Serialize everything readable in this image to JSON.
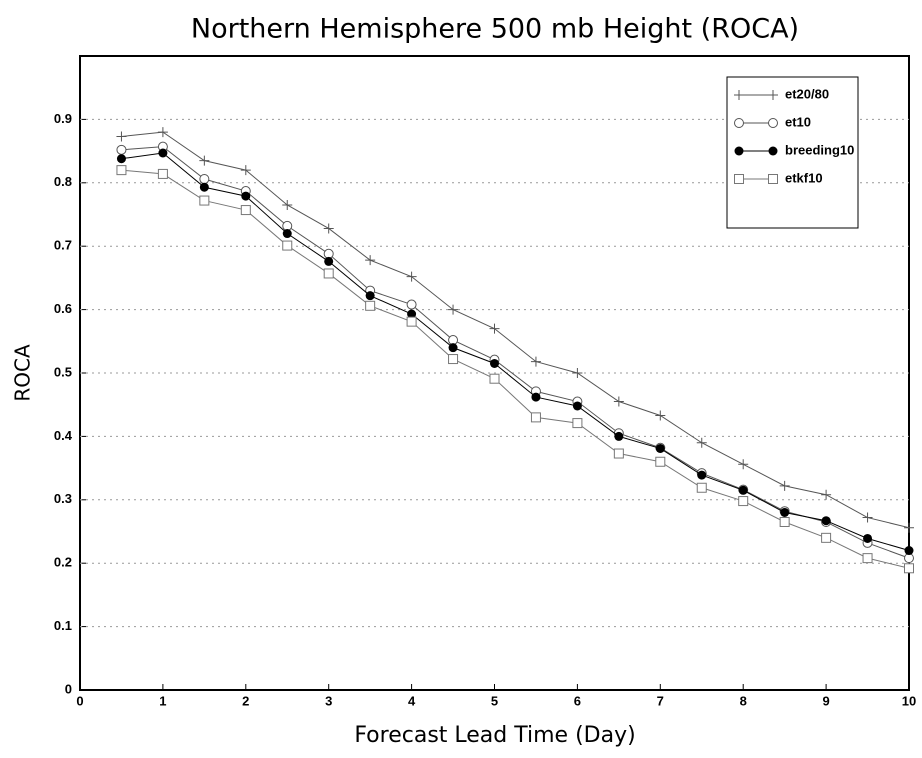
{
  "chart_data": {
    "type": "line",
    "title": "Northern Hemisphere 500 mb Height (ROCA)",
    "x_label": "Forecast Lead Time (Day)",
    "y_label": "ROCA",
    "x": [
      0.5,
      1,
      1.5,
      2,
      2.5,
      3,
      3.5,
      4,
      4.5,
      5,
      5.5,
      6,
      6.5,
      7,
      7.5,
      8,
      8.5,
      9,
      9.5,
      10
    ],
    "series": [
      {
        "name": "et20/80",
        "color": "#555555",
        "marker": "plus",
        "values": [
          0.873,
          0.88,
          0.835,
          0.82,
          0.765,
          0.728,
          0.678,
          0.652,
          0.6,
          0.57,
          0.518,
          0.5,
          0.455,
          0.433,
          0.39,
          0.356,
          0.322,
          0.308,
          0.272,
          0.256
        ]
      },
      {
        "name": "et10",
        "color": "#555555",
        "marker": "open-circle",
        "values": [
          0.852,
          0.857,
          0.806,
          0.787,
          0.732,
          0.688,
          0.63,
          0.608,
          0.552,
          0.521,
          0.471,
          0.455,
          0.405,
          0.382,
          0.342,
          0.316,
          0.282,
          0.265,
          0.232,
          0.208
        ]
      },
      {
        "name": "breeding10",
        "color": "#000000",
        "marker": "filled-circle",
        "values": [
          0.838,
          0.847,
          0.793,
          0.779,
          0.72,
          0.676,
          0.622,
          0.593,
          0.54,
          0.515,
          0.462,
          0.448,
          0.4,
          0.381,
          0.339,
          0.315,
          0.28,
          0.267,
          0.239,
          0.22
        ]
      },
      {
        "name": "etkf10",
        "color": "#777777",
        "marker": "open-square",
        "values": [
          0.82,
          0.814,
          0.772,
          0.757,
          0.701,
          0.657,
          0.606,
          0.581,
          0.522,
          0.491,
          0.43,
          0.421,
          0.373,
          0.36,
          0.319,
          0.298,
          0.265,
          0.24,
          0.208,
          0.192
        ]
      }
    ],
    "xlim": [
      0,
      10
    ],
    "xticks": [
      0,
      1,
      2,
      3,
      4,
      5,
      6,
      7,
      8,
      9,
      10
    ],
    "ylim": [
      0,
      1
    ],
    "yticks": [
      0,
      0.1,
      0.2,
      0.3,
      0.4,
      0.5,
      0.6,
      0.7,
      0.8,
      0.9
    ],
    "grid": true,
    "legend": "upper-right"
  }
}
